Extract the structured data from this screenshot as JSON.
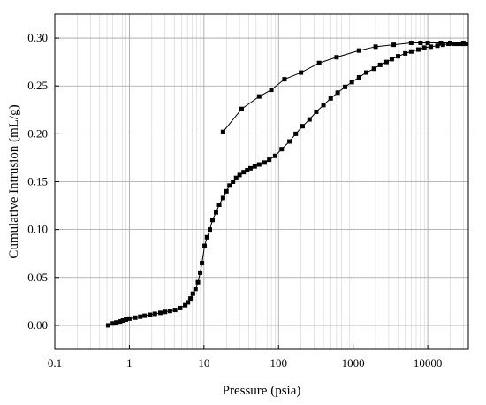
{
  "chart_data": {
    "type": "scatter",
    "title": "",
    "xlabel": "Pressure (psia)",
    "ylabel": "Cumulative Intrusion (mL/g)",
    "xscale": "log",
    "xlim": [
      0.1,
      35000
    ],
    "ylim": [
      -0.025,
      0.325
    ],
    "grid": "on (major and minor on x)",
    "legend": "none",
    "colors": {
      "series": "#000000",
      "grid": "#c8c8c8",
      "frame": "#000000"
    },
    "x_tick_labels": [
      "0.1",
      "1",
      "10",
      "100",
      "1000",
      "10000"
    ],
    "x_ticks": [
      0.1,
      1,
      10,
      100,
      1000,
      10000
    ],
    "y_tick_labels": [
      "0.00",
      "0.05",
      "0.10",
      "0.15",
      "0.20",
      "0.25",
      "0.30"
    ],
    "y_ticks": [
      0.0,
      0.05,
      0.1,
      0.15,
      0.2,
      0.25,
      0.3
    ],
    "series": [
      {
        "marker": "square",
        "points": [
          [
            0.52,
            0.0
          ],
          [
            0.6,
            0.002
          ],
          [
            0.67,
            0.003
          ],
          [
            0.75,
            0.004
          ],
          [
            0.82,
            0.005
          ],
          [
            0.9,
            0.006
          ],
          [
            1.0,
            0.007
          ],
          [
            1.2,
            0.008
          ],
          [
            1.4,
            0.009
          ],
          [
            1.6,
            0.01
          ],
          [
            1.9,
            0.011
          ],
          [
            2.2,
            0.012
          ],
          [
            2.6,
            0.013
          ],
          [
            3.0,
            0.014
          ],
          [
            3.5,
            0.015
          ],
          [
            4.1,
            0.016
          ],
          [
            4.8,
            0.018
          ],
          [
            5.6,
            0.021
          ],
          [
            6.1,
            0.024
          ],
          [
            6.6,
            0.028
          ],
          [
            7.1,
            0.033
          ],
          [
            7.7,
            0.038
          ],
          [
            8.3,
            0.045
          ],
          [
            8.9,
            0.055
          ],
          [
            9.4,
            0.065
          ],
          [
            10.2,
            0.083
          ],
          [
            11.0,
            0.092
          ],
          [
            12.0,
            0.1
          ],
          [
            13.0,
            0.11
          ],
          [
            14.5,
            0.118
          ],
          [
            16.0,
            0.126
          ],
          [
            18.0,
            0.133
          ],
          [
            20.0,
            0.14
          ],
          [
            22.0,
            0.146
          ],
          [
            24.5,
            0.15
          ],
          [
            27.0,
            0.154
          ],
          [
            30.0,
            0.157
          ],
          [
            34.0,
            0.16
          ],
          [
            38.0,
            0.162
          ],
          [
            42.0,
            0.164
          ],
          [
            48.0,
            0.166
          ],
          [
            55.0,
            0.168
          ],
          [
            65.0,
            0.17
          ],
          [
            75.0,
            0.173
          ],
          [
            90.0,
            0.177
          ],
          [
            110.0,
            0.184
          ],
          [
            140.0,
            0.192
          ],
          [
            170.0,
            0.2
          ],
          [
            210.0,
            0.208
          ],
          [
            260.0,
            0.215
          ],
          [
            320.0,
            0.223
          ],
          [
            400.0,
            0.23
          ],
          [
            500.0,
            0.237
          ],
          [
            620.0,
            0.243
          ],
          [
            780.0,
            0.249
          ],
          [
            960.0,
            0.254
          ],
          [
            1200.0,
            0.259
          ],
          [
            1500.0,
            0.264
          ],
          [
            1900.0,
            0.268
          ],
          [
            2300.0,
            0.272
          ],
          [
            2800.0,
            0.275
          ],
          [
            3300.0,
            0.278
          ],
          [
            4000.0,
            0.281
          ],
          [
            5000.0,
            0.284
          ],
          [
            6000.0,
            0.286
          ],
          [
            7500.0,
            0.288
          ],
          [
            9000.0,
            0.29
          ],
          [
            11000.0,
            0.291
          ],
          [
            13500.0,
            0.292
          ],
          [
            16000.0,
            0.293
          ],
          [
            19000.0,
            0.294
          ],
          [
            22000.0,
            0.294
          ],
          [
            25000.0,
            0.294
          ],
          [
            28000.0,
            0.294
          ],
          [
            30000.0,
            0.294
          ],
          [
            33000.0,
            0.294
          ],
          [
            30000.0,
            0.295
          ],
          [
            20000.0,
            0.295
          ],
          [
            15000.0,
            0.295
          ],
          [
            10000.0,
            0.295
          ],
          [
            8000.0,
            0.295
          ],
          [
            6000.0,
            0.295
          ],
          [
            3500.0,
            0.293
          ],
          [
            2000.0,
            0.291
          ],
          [
            1200.0,
            0.287
          ],
          [
            600.0,
            0.28
          ],
          [
            350.0,
            0.274
          ],
          [
            200.0,
            0.264
          ],
          [
            120.0,
            0.257
          ],
          [
            80.0,
            0.246
          ],
          [
            55.0,
            0.239
          ],
          [
            32.0,
            0.226
          ],
          [
            18.0,
            0.202
          ]
        ]
      }
    ]
  }
}
